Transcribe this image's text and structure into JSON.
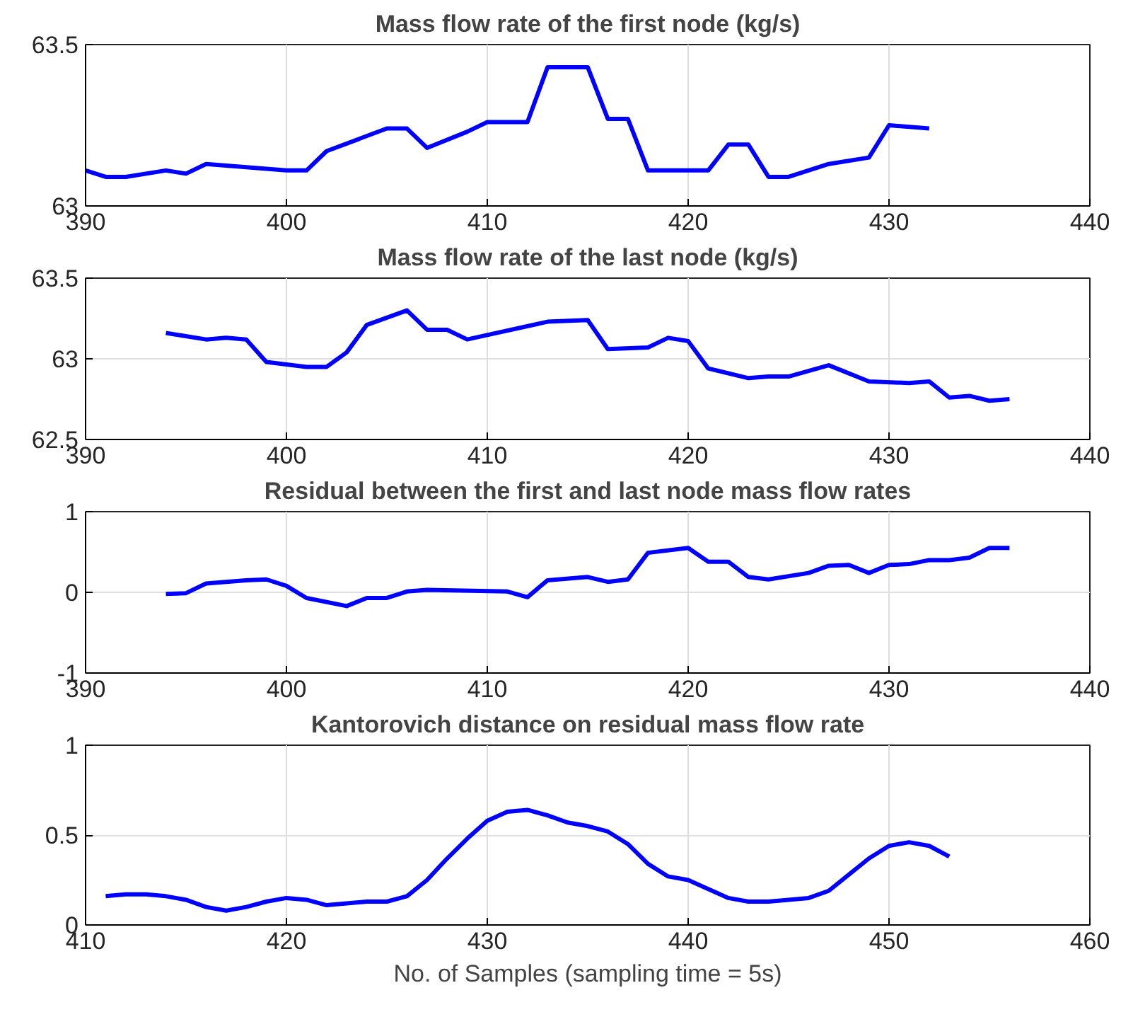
{
  "chart_data": [
    {
      "type": "line",
      "title": "Mass flow rate of the first node (kg/s)",
      "x": [
        390,
        391,
        392,
        394,
        395,
        396,
        400,
        401,
        402,
        405,
        406,
        407,
        409,
        410,
        412,
        413,
        415,
        416,
        417,
        418,
        421,
        422,
        423,
        424,
        425,
        427,
        429,
        430,
        432
      ],
      "series": [
        {
          "color": "#0000ff",
          "values": [
            63.11,
            63.09,
            63.09,
            63.11,
            63.1,
            63.13,
            63.11,
            63.11,
            63.17,
            63.24,
            63.24,
            63.18,
            63.23,
            63.26,
            63.26,
            63.43,
            63.43,
            63.27,
            63.27,
            63.11,
            63.11,
            63.19,
            63.19,
            63.09,
            63.09,
            63.13,
            63.15,
            63.25,
            63.24
          ]
        }
      ],
      "xlim": [
        390,
        440
      ],
      "xticks": [
        390,
        400,
        410,
        420,
        430,
        440
      ],
      "ylim": [
        63,
        63.5
      ],
      "yticks": [
        63,
        63.5
      ],
      "grid": true
    },
    {
      "type": "line",
      "title": "Mass flow rate of the last node (kg/s)",
      "x": [
        394,
        396,
        397,
        398,
        399,
        401,
        402,
        403,
        404,
        406,
        407,
        408,
        409,
        413,
        415,
        416,
        418,
        419,
        420,
        421,
        423,
        424,
        425,
        427,
        429,
        431,
        432,
        433,
        434,
        435,
        436
      ],
      "series": [
        {
          "color": "#0000ff",
          "values": [
            63.16,
            63.12,
            63.13,
            63.12,
            62.98,
            62.95,
            62.95,
            63.04,
            63.21,
            63.3,
            63.18,
            63.18,
            63.12,
            63.23,
            63.24,
            63.06,
            63.07,
            63.13,
            63.11,
            62.94,
            62.88,
            62.89,
            62.89,
            62.96,
            62.86,
            62.85,
            62.86,
            62.76,
            62.77,
            62.74,
            62.75
          ]
        }
      ],
      "xlim": [
        390,
        440
      ],
      "xticks": [
        390,
        400,
        410,
        420,
        430,
        440
      ],
      "ylim": [
        62.5,
        63.5
      ],
      "yticks": [
        62.5,
        63,
        63.5
      ],
      "grid": true
    },
    {
      "type": "line",
      "title": "Residual between the first and last node mass flow rates",
      "x": [
        394,
        395,
        396,
        398,
        399,
        400,
        401,
        403,
        404,
        405,
        406,
        407,
        411,
        412,
        413,
        415,
        416,
        417,
        418,
        420,
        421,
        422,
        423,
        424,
        426,
        427,
        428,
        429,
        430,
        431,
        432,
        433,
        434,
        435,
        436
      ],
      "series": [
        {
          "color": "#0000ff",
          "values": [
            -0.02,
            -0.01,
            0.11,
            0.15,
            0.16,
            0.08,
            -0.07,
            -0.17,
            -0.07,
            -0.07,
            0.01,
            0.03,
            0.01,
            -0.06,
            0.15,
            0.19,
            0.13,
            0.16,
            0.49,
            0.55,
            0.38,
            0.38,
            0.19,
            0.16,
            0.24,
            0.33,
            0.34,
            0.24,
            0.34,
            0.35,
            0.4,
            0.4,
            0.43,
            0.55,
            0.55
          ]
        }
      ],
      "xlim": [
        390,
        440
      ],
      "xticks": [
        390,
        400,
        410,
        420,
        430,
        440
      ],
      "ylim": [
        -1,
        1
      ],
      "yticks": [
        -1,
        0,
        1
      ],
      "grid": true
    },
    {
      "type": "line",
      "title": "Kantorovich distance on residual mass flow rate",
      "xlabel": "No. of Samples (sampling time = 5s)",
      "x": [
        411,
        412,
        413,
        414,
        415,
        416,
        417,
        418,
        419,
        420,
        421,
        422,
        423,
        424,
        425,
        426,
        427,
        428,
        429,
        430,
        431,
        432,
        433,
        434,
        435,
        436,
        437,
        438,
        439,
        440,
        441,
        442,
        443,
        444,
        445,
        446,
        447,
        448,
        449,
        450,
        451,
        452,
        453
      ],
      "series": [
        {
          "color": "#0000ff",
          "values": [
            0.16,
            0.17,
            0.17,
            0.16,
            0.14,
            0.1,
            0.08,
            0.1,
            0.13,
            0.15,
            0.14,
            0.11,
            0.12,
            0.13,
            0.13,
            0.16,
            0.25,
            0.37,
            0.48,
            0.58,
            0.63,
            0.64,
            0.61,
            0.57,
            0.55,
            0.52,
            0.45,
            0.34,
            0.27,
            0.25,
            0.2,
            0.15,
            0.13,
            0.13,
            0.14,
            0.15,
            0.19,
            0.28,
            0.37,
            0.44,
            0.46,
            0.44,
            0.38
          ]
        }
      ],
      "xlim": [
        410,
        460
      ],
      "xticks": [
        410,
        420,
        430,
        440,
        450,
        460
      ],
      "ylim": [
        0,
        1
      ],
      "yticks": [
        0,
        0.5,
        1
      ],
      "grid": true
    }
  ]
}
